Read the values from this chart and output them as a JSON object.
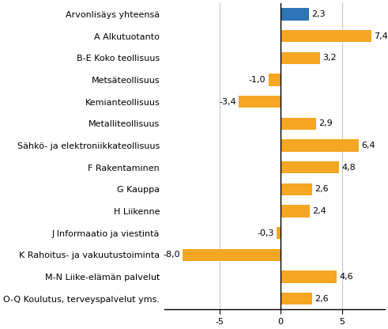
{
  "categories": [
    "Arvonlisäys yhteensä",
    "A Alkutuotanto",
    "B-E Koko teollisuus",
    "Metsäteollisuus",
    "Kemianteollisuus",
    "Metalliteollisuus",
    "Sähkö- ja elektroniikkateollisuus",
    "F Rakentaminen",
    "G Kauppa",
    "H Liikenne",
    "J Informaatio ja viestintä",
    "K Rahoitus- ja vakuutustoiminta",
    "M-N Liike-elämän palvelut",
    "O-Q Koulutus, terveyspalvelut yms."
  ],
  "values": [
    2.3,
    7.4,
    3.2,
    -1.0,
    -3.4,
    2.9,
    6.4,
    4.8,
    2.6,
    2.4,
    -0.3,
    -8.0,
    4.6,
    2.6
  ],
  "colors": [
    "#2e75b6",
    "#f5a623",
    "#f5a623",
    "#f5a623",
    "#f5a623",
    "#f5a623",
    "#f5a623",
    "#f5a623",
    "#f5a623",
    "#f5a623",
    "#f5a623",
    "#f5a623",
    "#f5a623",
    "#f5a623"
  ],
  "xlim": [
    -9.5,
    8.5
  ],
  "xticks": [
    -5,
    0,
    5
  ],
  "bar_height": 0.55,
  "label_fontsize": 8.0,
  "value_fontsize": 8.0,
  "background_color": "#ffffff",
  "grid_color": "#c8c8c8"
}
